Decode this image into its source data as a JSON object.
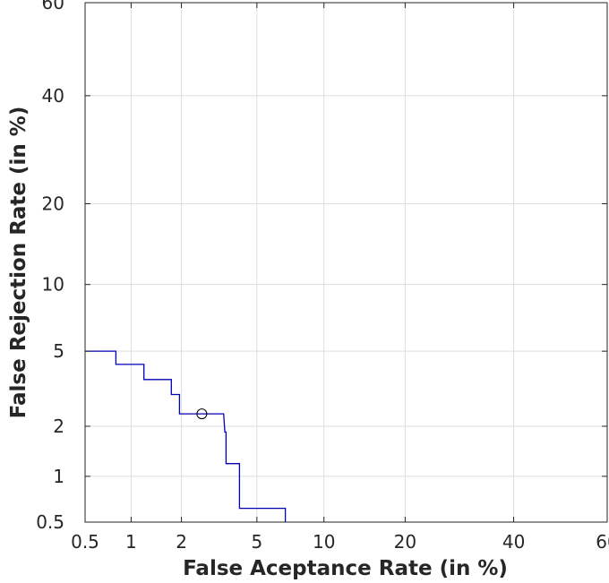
{
  "chart_data": {
    "type": "line",
    "title": "",
    "xlabel": "False Aceptance Rate (in %)",
    "ylabel": "False Rejection Rate (in %)",
    "axis_scale": "normal-deviate (DET)",
    "xlim": [
      0.5,
      60
    ],
    "ylim": [
      0.5,
      60
    ],
    "xticks": [
      0.5,
      1,
      2,
      5,
      10,
      20,
      40,
      60
    ],
    "yticks": [
      0.5,
      1,
      2,
      5,
      10,
      20,
      40,
      60
    ],
    "xtick_labels": [
      "0.5",
      "1",
      "2",
      "5",
      "10",
      "20",
      "40",
      "60"
    ],
    "ytick_labels": [
      "0.5",
      "1",
      "2",
      "5",
      "10",
      "20",
      "40",
      "60"
    ],
    "grid": true,
    "legend": "none",
    "series": [
      {
        "color": "#0000b4",
        "step_points": [
          [
            0.5,
            5.0
          ],
          [
            0.8,
            5.0
          ],
          [
            0.8,
            4.3
          ],
          [
            1.2,
            4.3
          ],
          [
            1.2,
            3.6
          ],
          [
            1.75,
            3.6
          ],
          [
            1.75,
            3.0
          ],
          [
            1.95,
            3.0
          ],
          [
            1.95,
            2.35
          ],
          [
            3.4,
            2.35
          ],
          [
            3.45,
            1.85
          ],
          [
            3.5,
            1.85
          ],
          [
            3.5,
            1.2
          ],
          [
            4.1,
            1.2
          ],
          [
            4.1,
            0.62
          ],
          [
            6.8,
            0.62
          ],
          [
            6.8,
            0.5
          ]
        ]
      }
    ],
    "markers": [
      {
        "shape": "circle",
        "x": 2.6,
        "y": 2.35,
        "color": "#000000"
      }
    ]
  }
}
